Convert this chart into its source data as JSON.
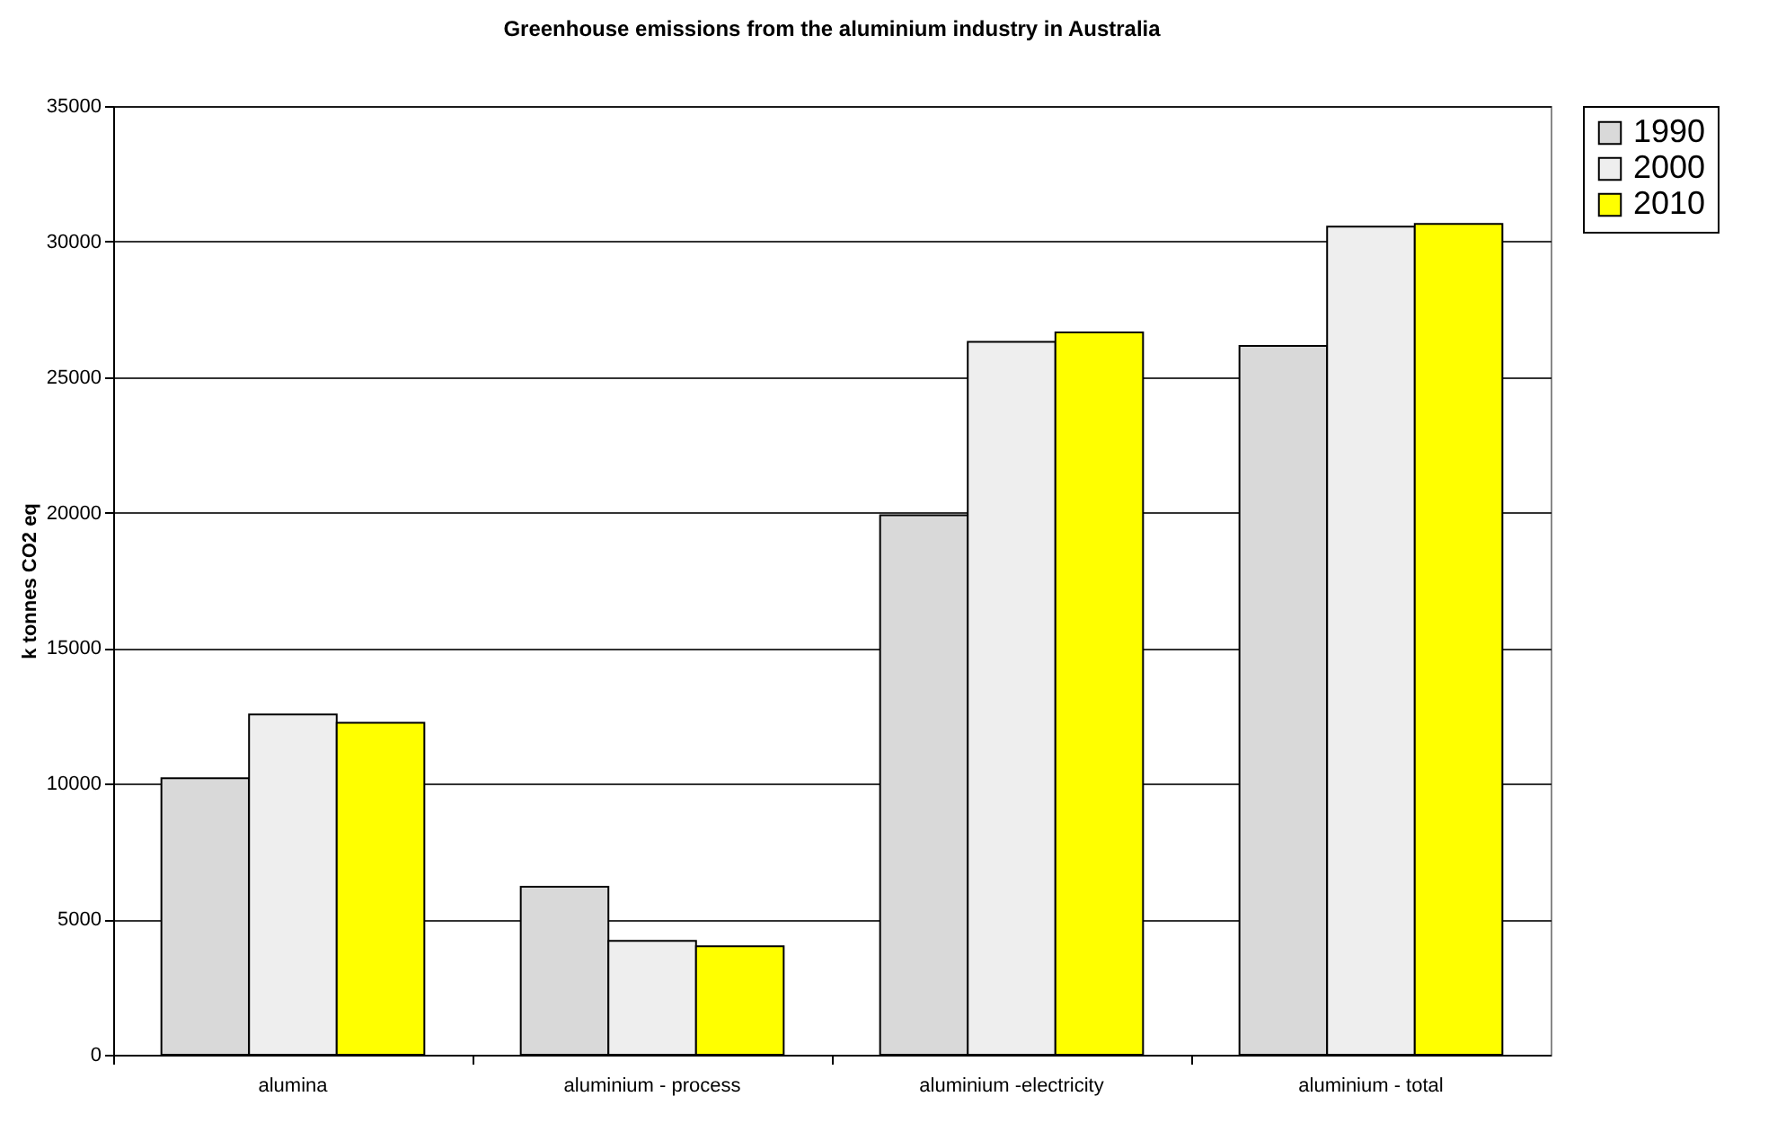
{
  "chart_data": {
    "type": "bar",
    "title": "Greenhouse emissions from the aluminium industry in Australia",
    "ylabel": "k tonnes CO2 eq",
    "categories": [
      "alumina",
      "aluminium - process",
      "aluminium -electricity",
      "aluminium - total"
    ],
    "series": [
      {
        "name": "1990",
        "color": "#d9d9d9",
        "values": [
          10200,
          6200,
          19900,
          26150
        ]
      },
      {
        "name": "2000",
        "color": "#eeeeee",
        "values": [
          12550,
          4200,
          26300,
          30550
        ]
      },
      {
        "name": "2010",
        "color": "#ffff00",
        "values": [
          12250,
          4000,
          26650,
          30650
        ]
      }
    ],
    "ylim": [
      0,
      35000
    ],
    "yticks": [
      0,
      5000,
      10000,
      15000,
      20000,
      25000,
      30000,
      35000
    ],
    "grid": "y",
    "legend": "right"
  }
}
